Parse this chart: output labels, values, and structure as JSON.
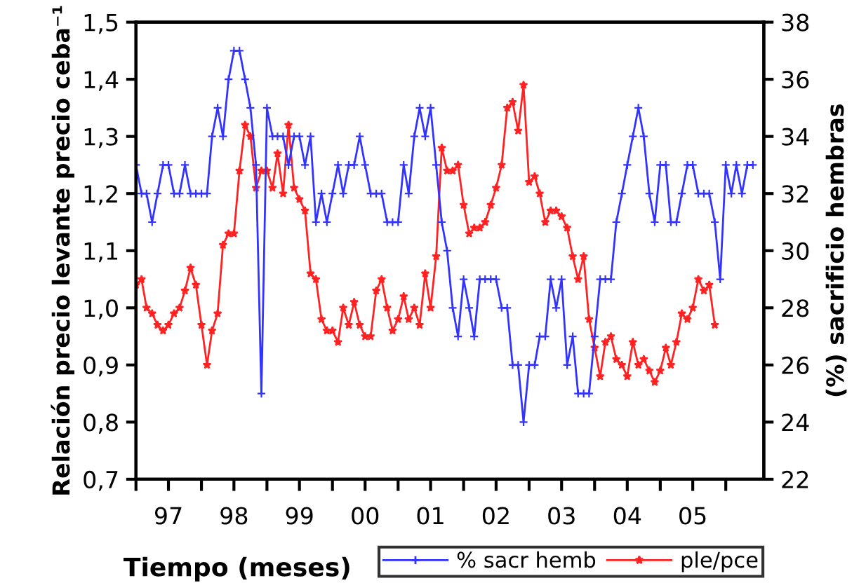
{
  "chart_data": {
    "type": "line",
    "xlabel": "Tiempo (meses)",
    "ylabel": "Relación precio levante precio ceba⁻¹",
    "y2label": "(%) sacrificio hembras",
    "xlim": [
      "1997-01",
      "2006-08"
    ],
    "xticks": [
      {
        "value": "1997-01",
        "label": null
      },
      {
        "value": "1997-07",
        "label": "97"
      },
      {
        "value": "1998-01",
        "label": null
      },
      {
        "value": "1998-07",
        "label": "98"
      },
      {
        "value": "1999-01",
        "label": null
      },
      {
        "value": "1999-07",
        "label": "99"
      },
      {
        "value": "2000-01",
        "label": null
      },
      {
        "value": "2000-07",
        "label": "00"
      },
      {
        "value": "2001-01",
        "label": null
      },
      {
        "value": "2001-07",
        "label": "01"
      },
      {
        "value": "2002-01",
        "label": null
      },
      {
        "value": "2002-07",
        "label": "02"
      },
      {
        "value": "2003-01",
        "label": null
      },
      {
        "value": "2003-07",
        "label": "03"
      },
      {
        "value": "2004-01",
        "label": null
      },
      {
        "value": "2004-07",
        "label": "04"
      },
      {
        "value": "2005-01",
        "label": null
      },
      {
        "value": "2005-07",
        "label": "05"
      },
      {
        "value": "2006-01",
        "label": null
      }
    ],
    "ylim": [
      0.7,
      1.5
    ],
    "yticks": [
      {
        "value": 0.7,
        "label": "0,7"
      },
      {
        "value": 0.8,
        "label": "0,8"
      },
      {
        "value": 0.9,
        "label": "0,9"
      },
      {
        "value": 1.0,
        "label": "1,0"
      },
      {
        "value": 1.1,
        "label": "1,1"
      },
      {
        "value": 1.2,
        "label": "1,2"
      },
      {
        "value": 1.3,
        "label": "1,3"
      },
      {
        "value": 1.4,
        "label": "1,4"
      },
      {
        "value": 1.5,
        "label": "1,5"
      }
    ],
    "y2lim": [
      22,
      38
    ],
    "y2ticks": [
      22,
      24,
      26,
      28,
      30,
      32,
      34,
      36,
      38
    ],
    "grid": false,
    "legend": "bottom",
    "series": [
      {
        "name": "% sacr hemb",
        "color": "#3333ff",
        "axis": "y2",
        "marker": "cross",
        "x": [
          "1997-01",
          "1997-02",
          "1997-03",
          "1997-04",
          "1997-05",
          "1997-06",
          "1997-07",
          "1997-08",
          "1997-09",
          "1997-10",
          "1997-11",
          "1997-12",
          "1998-01",
          "1998-02",
          "1998-03",
          "1998-04",
          "1998-05",
          "1998-06",
          "1998-07",
          "1998-08",
          "1998-09",
          "1998-10",
          "1998-11",
          "1998-12",
          "1999-01",
          "1999-02",
          "1999-03",
          "1999-04",
          "1999-05",
          "1999-06",
          "1999-07",
          "1999-08",
          "1999-09",
          "1999-10",
          "1999-11",
          "1999-12",
          "2000-01",
          "2000-02",
          "2000-03",
          "2000-04",
          "2000-05",
          "2000-06",
          "2000-07",
          "2000-08",
          "2000-09",
          "2000-10",
          "2000-11",
          "2000-12",
          "2001-01",
          "2001-02",
          "2001-03",
          "2001-04",
          "2001-05",
          "2001-06",
          "2001-07",
          "2001-08",
          "2001-09",
          "2001-10",
          "2001-11",
          "2001-12",
          "2002-01",
          "2002-02",
          "2002-03",
          "2002-04",
          "2002-05",
          "2002-06",
          "2002-07",
          "2002-08",
          "2002-09",
          "2002-10",
          "2002-11",
          "2002-12",
          "2003-01",
          "2003-02",
          "2003-03",
          "2003-04",
          "2003-05",
          "2003-06",
          "2003-07",
          "2003-08",
          "2003-09",
          "2003-10",
          "2003-11",
          "2003-12",
          "2004-01",
          "2004-02",
          "2004-03",
          "2004-04",
          "2004-05",
          "2004-06",
          "2004-07",
          "2004-08",
          "2004-09",
          "2004-10",
          "2004-11",
          "2004-12",
          "2005-01",
          "2005-02",
          "2005-03",
          "2005-04",
          "2005-05",
          "2005-06",
          "2005-07",
          "2005-08",
          "2005-09",
          "2005-10",
          "2005-11",
          "2005-12",
          "2006-01",
          "2006-02",
          "2006-03",
          "2006-04",
          "2006-05",
          "2006-06"
        ],
        "values": [
          33,
          32,
          32,
          31,
          32,
          33,
          33,
          32,
          32,
          33,
          32,
          32,
          32,
          32,
          34,
          35,
          34,
          36,
          37,
          37,
          36,
          35,
          33,
          25,
          35,
          34,
          34,
          34,
          33,
          34,
          34,
          33,
          34,
          31,
          32,
          31,
          32,
          33,
          32,
          33,
          33,
          34,
          33,
          32,
          32,
          32,
          31,
          31,
          31,
          33,
          32,
          34,
          35,
          34,
          35,
          33,
          31,
          30,
          28,
          27,
          29,
          28,
          27,
          29,
          29,
          29,
          29,
          28,
          28,
          26,
          26,
          24,
          26,
          26,
          27,
          27,
          29,
          28,
          29,
          26,
          27,
          25,
          25,
          25,
          27,
          29,
          29,
          29,
          31,
          32,
          33,
          34,
          35,
          34,
          32,
          31,
          33,
          33,
          31,
          31,
          32,
          33,
          33,
          32,
          32,
          32,
          31,
          29,
          33,
          32,
          33,
          32,
          33,
          33
        ]
      },
      {
        "name": "ple/pce",
        "color": "#ff2222",
        "marker": "star",
        "x": [
          "1997-01",
          "1997-02",
          "1997-03",
          "1997-04",
          "1997-05",
          "1997-06",
          "1997-07",
          "1997-08",
          "1997-09",
          "1997-10",
          "1997-11",
          "1997-12",
          "1998-01",
          "1998-02",
          "1998-03",
          "1998-04",
          "1998-05",
          "1998-06",
          "1998-07",
          "1998-08",
          "1998-09",
          "1998-10",
          "1998-11",
          "1998-12",
          "1999-01",
          "1999-02",
          "1999-03",
          "1999-04",
          "1999-05",
          "1999-06",
          "1999-07",
          "1999-08",
          "1999-09",
          "1999-10",
          "1999-11",
          "1999-12",
          "2000-01",
          "2000-02",
          "2000-03",
          "2000-04",
          "2000-05",
          "2000-06",
          "2000-07",
          "2000-08",
          "2000-09",
          "2000-10",
          "2000-11",
          "2000-12",
          "2001-01",
          "2001-02",
          "2001-03",
          "2001-04",
          "2001-05",
          "2001-06",
          "2001-07",
          "2001-08",
          "2001-09",
          "2001-10",
          "2001-11",
          "2001-12",
          "2002-01",
          "2002-02",
          "2002-03",
          "2002-04",
          "2002-05",
          "2002-06",
          "2002-07",
          "2002-08",
          "2002-09",
          "2002-10",
          "2002-11",
          "2002-12",
          "2003-01",
          "2003-02",
          "2003-03",
          "2003-04",
          "2003-05",
          "2003-06",
          "2003-07",
          "2003-08",
          "2003-09",
          "2003-10",
          "2003-11",
          "2003-12",
          "2004-01",
          "2004-02",
          "2004-03",
          "2004-04",
          "2004-05",
          "2004-06",
          "2004-07",
          "2004-08",
          "2004-09",
          "2004-10",
          "2004-11",
          "2004-12",
          "2005-01",
          "2005-02",
          "2005-03",
          "2005-04",
          "2005-05",
          "2005-06",
          "2005-07",
          "2005-08",
          "2005-09",
          "2005-10",
          "2005-11"
        ],
        "values": [
          1.04,
          1.05,
          1.0,
          0.99,
          0.97,
          0.96,
          0.97,
          0.99,
          1.0,
          1.03,
          1.07,
          1.04,
          0.97,
          0.9,
          0.96,
          0.99,
          1.11,
          1.13,
          1.13,
          1.24,
          1.32,
          1.3,
          1.21,
          1.24,
          1.24,
          1.21,
          1.27,
          1.2,
          1.32,
          1.21,
          1.19,
          1.17,
          1.06,
          1.05,
          0.98,
          0.96,
          0.96,
          0.94,
          1.0,
          0.97,
          1.01,
          0.97,
          0.95,
          0.95,
          1.03,
          1.05,
          1.0,
          0.96,
          0.98,
          1.02,
          0.98,
          1.0,
          0.97,
          1.06,
          1.0,
          1.09,
          1.28,
          1.24,
          1.24,
          1.25,
          1.18,
          1.13,
          1.14,
          1.14,
          1.15,
          1.18,
          1.21,
          1.25,
          1.35,
          1.36,
          1.31,
          1.39,
          1.22,
          1.23,
          1.2,
          1.15,
          1.17,
          1.17,
          1.16,
          1.14,
          1.09,
          1.05,
          1.09,
          0.98,
          0.93,
          0.88,
          0.94,
          0.95,
          0.91,
          0.9,
          0.88,
          0.94,
          0.9,
          0.91,
          0.89,
          0.87,
          0.89,
          0.93,
          0.9,
          0.94,
          0.99,
          0.98,
          1.0,
          1.05,
          1.03,
          1.04,
          0.97
        ]
      }
    ]
  }
}
